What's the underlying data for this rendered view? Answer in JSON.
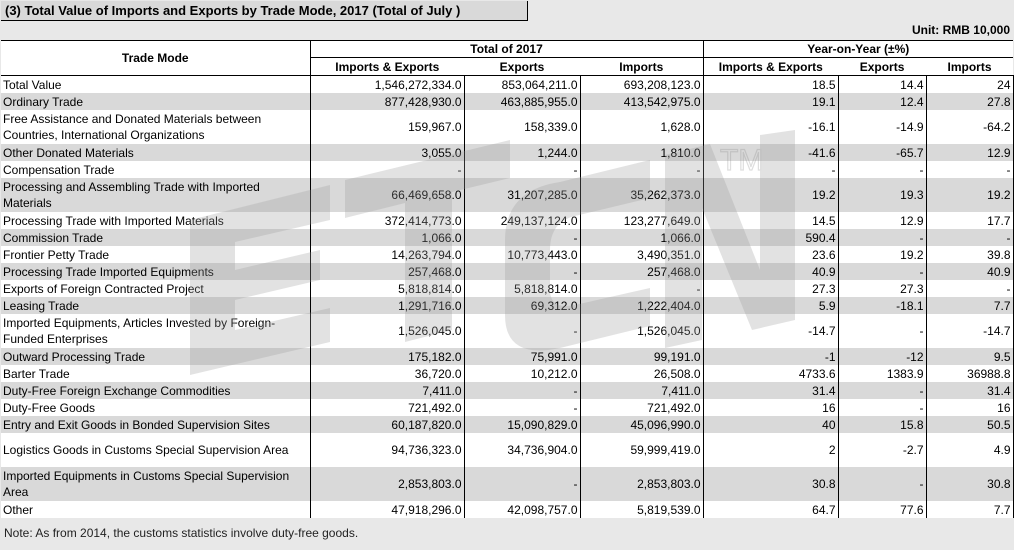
{
  "title": "(3) Total Value of Imports and Exports by Trade Mode,  2017 (Total of July )",
  "unit": "Unit: RMB 10,000",
  "headers": {
    "trade_mode": "Trade Mode",
    "total_group": "Total of  2017",
    "yoy_group": "Year-on-Year (±%)",
    "cols": [
      "Imports & Exports",
      "Exports",
      "Imports",
      "Imports & Exports",
      "Exports",
      "Imports"
    ]
  },
  "rows": [
    {
      "label": "Total Value",
      "v": [
        "1,546,272,334.0",
        "853,064,211.0",
        "693,208,123.0",
        "18.5",
        "14.4",
        "24"
      ]
    },
    {
      "label": "Ordinary Trade",
      "v": [
        "877,428,930.0",
        "463,885,955.0",
        "413,542,975.0",
        "19.1",
        "12.4",
        "27.8"
      ]
    },
    {
      "label": "Free Assistance and Donated Materials between Countries, International Organizations",
      "v": [
        "159,967.0",
        "158,339.0",
        "1,628.0",
        "-16.1",
        "-14.9",
        "-64.2"
      ]
    },
    {
      "label": "Other Donated Materials",
      "v": [
        "3,055.0",
        "1,244.0",
        "1,810.0",
        "-41.6",
        "-65.7",
        "12.9"
      ]
    },
    {
      "label": "Compensation Trade",
      "v": [
        "-",
        "-",
        "-",
        "-",
        "-",
        "-"
      ]
    },
    {
      "label": "Processing and Assembling Trade with Imported Materials",
      "v": [
        "66,469,658.0",
        "31,207,285.0",
        "35,262,373.0",
        "19.2",
        "19.3",
        "19.2"
      ]
    },
    {
      "label": "Processing Trade with Imported Materials",
      "v": [
        "372,414,773.0",
        "249,137,124.0",
        "123,277,649.0",
        "14.5",
        "12.9",
        "17.7"
      ]
    },
    {
      "label": "Commission Trade",
      "v": [
        "1,066.0",
        "-",
        "1,066.0",
        "590.4",
        "-",
        "-"
      ]
    },
    {
      "label": "Frontier Petty Trade",
      "v": [
        "14,263,794.0",
        "10,773,443.0",
        "3,490,351.0",
        "23.6",
        "19.2",
        "39.8"
      ]
    },
    {
      "label": "Processing Trade Imported Equipments",
      "v": [
        "257,468.0",
        "-",
        "257,468.0",
        "40.9",
        "-",
        "40.9"
      ]
    },
    {
      "label": "Exports of Foreign Contracted Project",
      "v": [
        "5,818,814.0",
        "5,818,814.0",
        "-",
        "27.3",
        "27.3",
        "-"
      ]
    },
    {
      "label": "Leasing Trade",
      "v": [
        "1,291,716.0",
        "69,312.0",
        "1,222,404.0",
        "5.9",
        "-18.1",
        "7.7"
      ]
    },
    {
      "label": "Imported Equipments, Articles Invested by Foreign-Funded Enterprises",
      "v": [
        "1,526,045.0",
        "-",
        "1,526,045.0",
        "-14.7",
        "-",
        "-14.7"
      ]
    },
    {
      "label": "Outward Processing Trade",
      "v": [
        "175,182.0",
        "75,991.0",
        "99,191.0",
        "-1",
        "-12",
        "9.5"
      ]
    },
    {
      "label": "Barter Trade",
      "v": [
        "36,720.0",
        "10,212.0",
        "26,508.0",
        "4733.6",
        "1383.9",
        "36988.8"
      ]
    },
    {
      "label": "Duty-Free Foreign Exchange Commodities",
      "v": [
        "7,411.0",
        "-",
        "7,411.0",
        "31.4",
        "-",
        "31.4"
      ]
    },
    {
      "label": "Duty-Free Goods",
      "v": [
        "721,492.0",
        "-",
        "721,492.0",
        "16",
        "-",
        "16"
      ]
    },
    {
      "label": "Entry and Exit Goods in Bonded Supervision Sites",
      "v": [
        "60,187,820.0",
        "15,090,829.0",
        "45,096,990.0",
        "40",
        "15.8",
        "50.5"
      ]
    },
    {
      "label": "Logistics Goods in Customs Special Supervision Area",
      "v": [
        "94,736,323.0",
        "34,736,904.0",
        "59,999,419.0",
        "2",
        "-2.7",
        "4.9"
      ]
    },
    {
      "label": "Imported Equipments in Customs Special Supervision Area",
      "v": [
        "2,853,803.0",
        "-",
        "2,853,803.0",
        "30.8",
        "-",
        "30.8"
      ]
    },
    {
      "label": "Other",
      "v": [
        "47,918,296.0",
        "42,098,757.0",
        "5,819,539.0",
        "64.7",
        "77.6",
        "7.7"
      ]
    }
  ],
  "note": "Note: As from 2014, the customs statistics involve duty-free goods.",
  "watermark": {
    "text": "ETCN",
    "tm": "TM"
  },
  "colors": {
    "band": "#d9d9d9",
    "white": "#ffffff",
    "watermark": "#9a9a9a"
  }
}
